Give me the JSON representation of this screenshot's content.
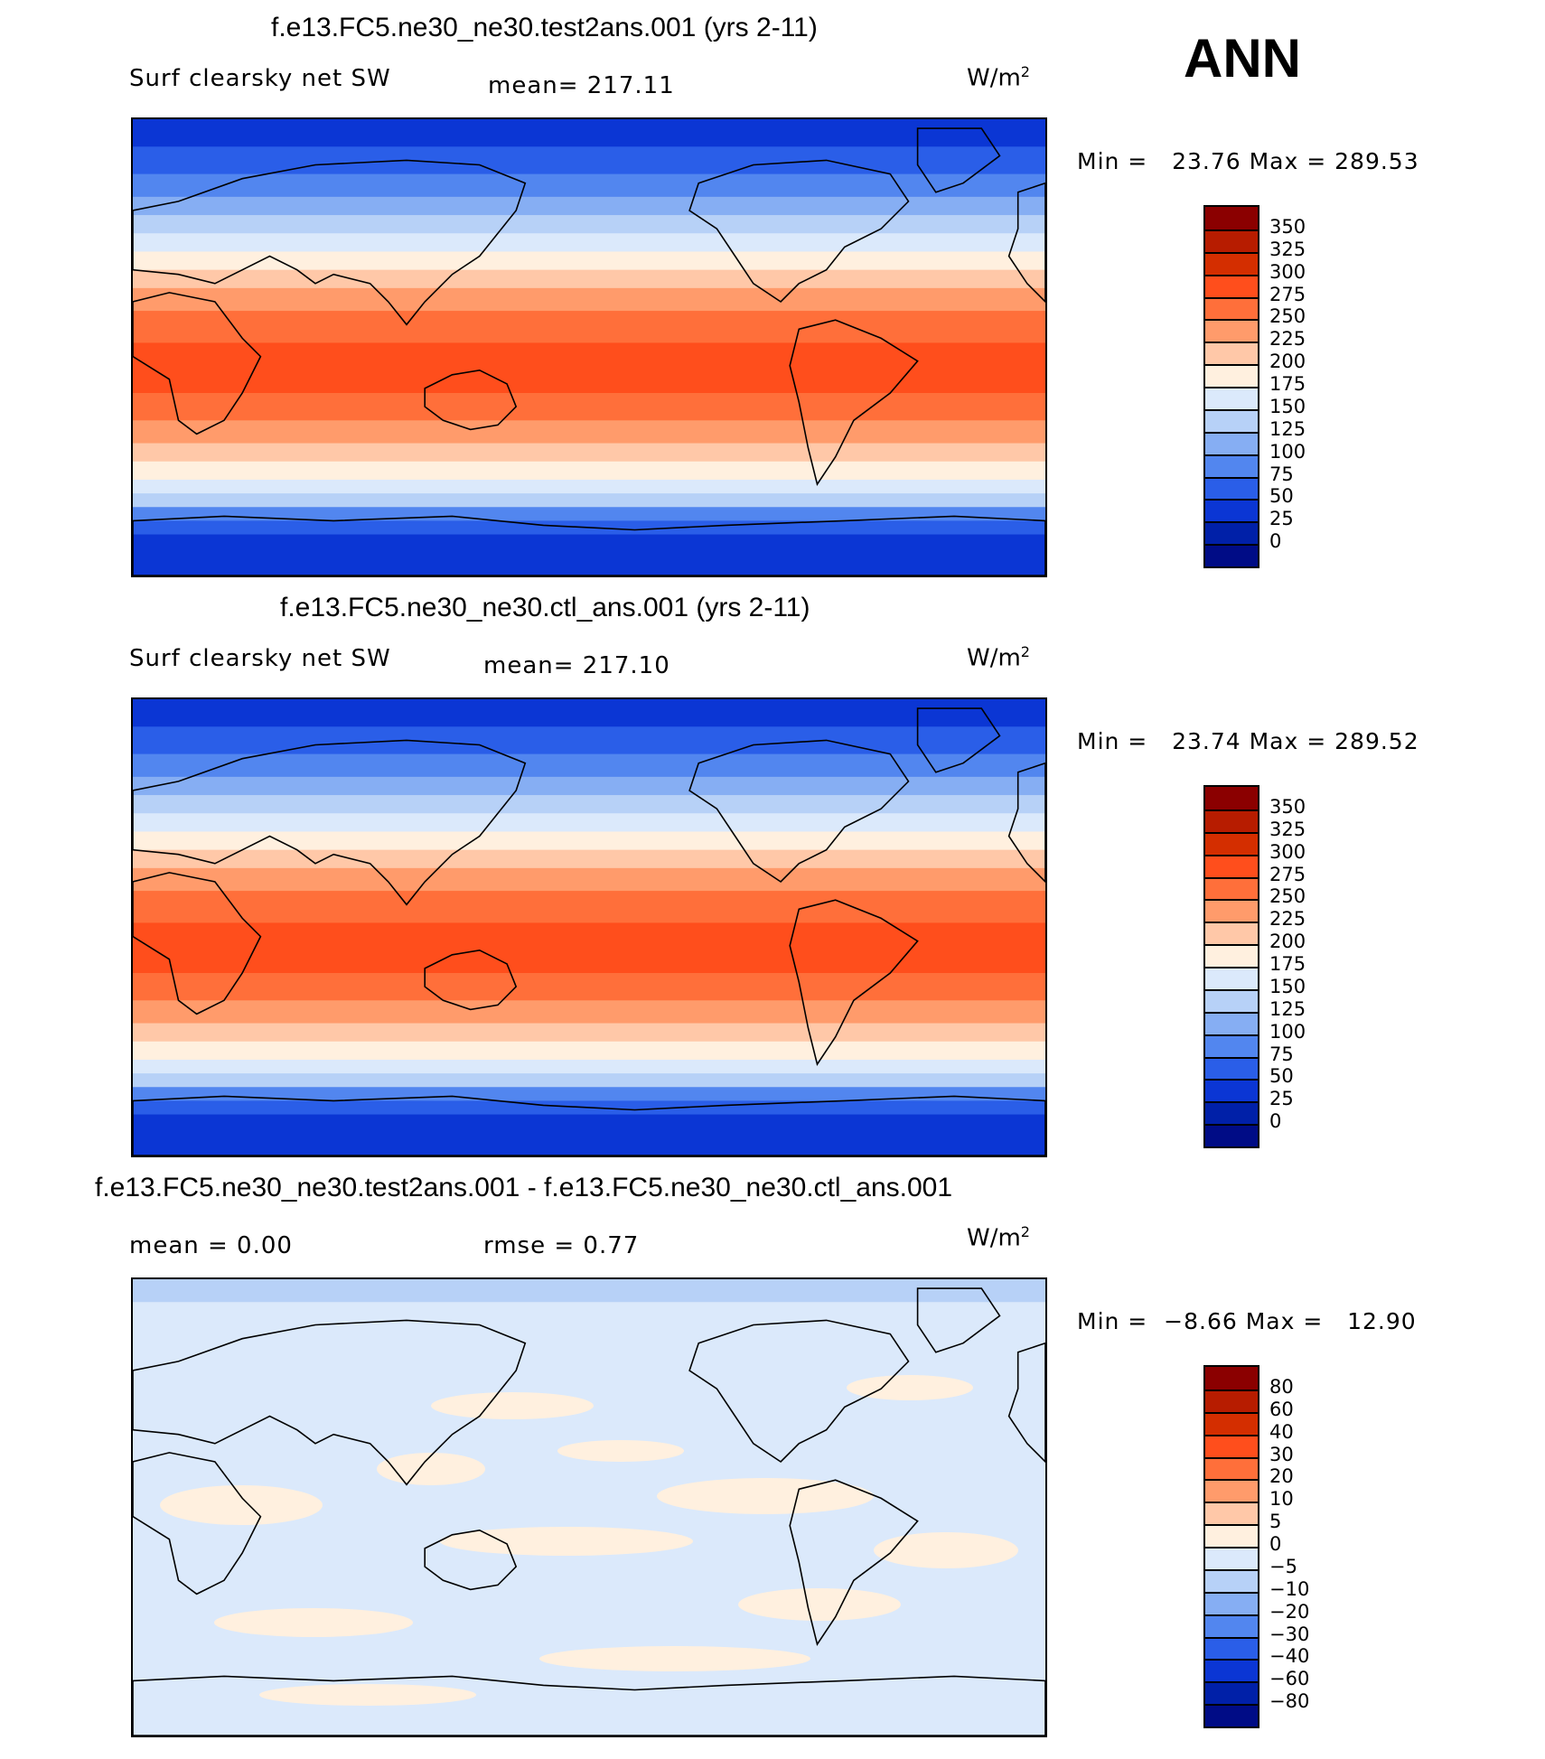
{
  "season_label": "ANN",
  "panels": [
    {
      "title": "f.e13.FC5.ne30_ne30.test2ans.001 (yrs 2-11)",
      "left_label": "Surf clearsky net SW",
      "stat1": "mean= 217.11",
      "stat2": "",
      "units": "W/m",
      "units_sup": "2",
      "minmax": "Min =   23.76 Max = 289.53",
      "levels": [
        "350",
        "325",
        "300",
        "275",
        "250",
        "225",
        "200",
        "175",
        "150",
        "125",
        "100",
        "75",
        "50",
        "25",
        "0"
      ],
      "colors": [
        "#8b0000",
        "#b71c00",
        "#d42e00",
        "#ff4e1c",
        "#ff6f3a",
        "#ff9b6b",
        "#ffc8a8",
        "#fff0df",
        "#dbe9fb",
        "#b7d1f7",
        "#86aef3",
        "#5286ef",
        "#2a5ee8",
        "#0b36d4",
        "#0020a8",
        "#000c86"
      ]
    },
    {
      "title": "f.e13.FC5.ne30_ne30.ctl_ans.001 (yrs 2-11)",
      "left_label": "Surf clearsky net SW",
      "stat1": "mean= 217.10",
      "stat2": "",
      "units": "W/m",
      "units_sup": "2",
      "minmax": "Min =   23.74 Max = 289.52",
      "levels": [
        "350",
        "325",
        "300",
        "275",
        "250",
        "225",
        "200",
        "175",
        "150",
        "125",
        "100",
        "75",
        "50",
        "25",
        "0"
      ],
      "colors": [
        "#8b0000",
        "#b71c00",
        "#d42e00",
        "#ff4e1c",
        "#ff6f3a",
        "#ff9b6b",
        "#ffc8a8",
        "#fff0df",
        "#dbe9fb",
        "#b7d1f7",
        "#86aef3",
        "#5286ef",
        "#2a5ee8",
        "#0b36d4",
        "#0020a8",
        "#000c86"
      ]
    },
    {
      "title": "f.e13.FC5.ne30_ne30.test2ans.001 - f.e13.FC5.ne30_ne30.ctl_ans.001",
      "left_label": "mean =    0.00",
      "stat1": "rmse =    0.77",
      "stat2": "",
      "units": "W/m",
      "units_sup": "2",
      "minmax": "Min =  −8.66 Max =   12.90",
      "levels": [
        "80",
        "60",
        "40",
        "30",
        "20",
        "10",
        "5",
        "0",
        "−5",
        "−10",
        "−20",
        "−30",
        "−40",
        "−60",
        "−80"
      ],
      "colors": [
        "#8b0000",
        "#b71c00",
        "#d42e00",
        "#ff4e1c",
        "#ff6f3a",
        "#ff9b6b",
        "#ffc8a8",
        "#fff0df",
        "#dbe9fb",
        "#b7d1f7",
        "#86aef3",
        "#5286ef",
        "#2a5ee8",
        "#0b36d4",
        "#0020a8",
        "#000c86"
      ]
    }
  ]
}
